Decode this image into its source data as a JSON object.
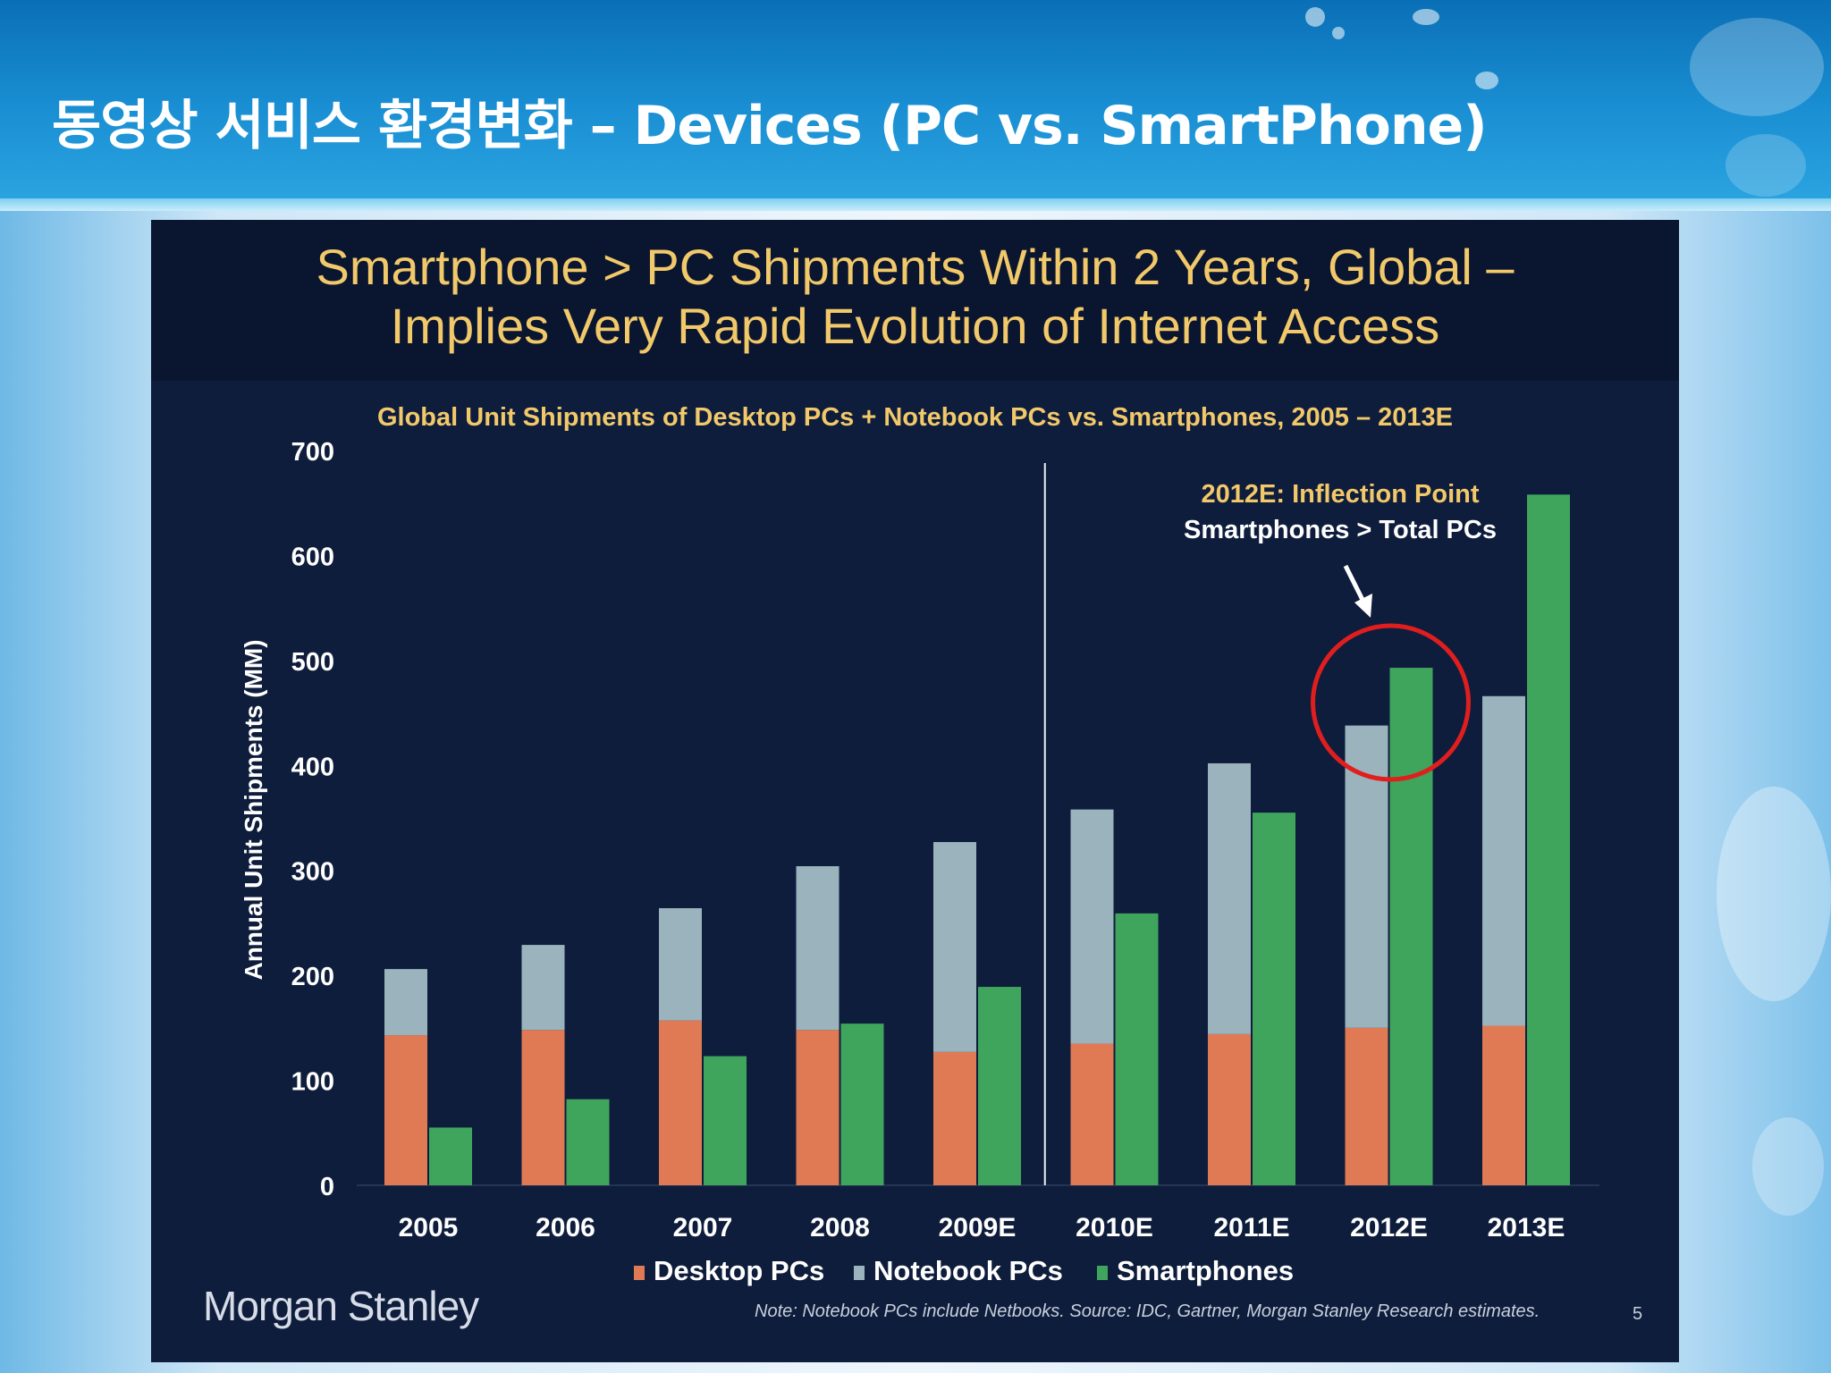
{
  "slide": {
    "title": "동영상 서비스 환경변화 – Devices (PC vs. SmartPhone)"
  },
  "chart_panel": {
    "headline_line1": "Smartphone > PC Shipments Within 2 Years, Global –",
    "headline_line2": "Implies Very Rapid Evolution of Internet Access",
    "annotation_line1": "2012E: Inflection Point",
    "annotation_line2": "Smartphones > Total PCs",
    "logo_text": "Morgan Stanley",
    "note": "Note: Notebook PCs include Netbooks. Source: IDC, Gartner, Morgan Stanley Research estimates.",
    "page_number": "5"
  },
  "colors": {
    "desktop": "#e07a55",
    "notebook": "#9ab3bd",
    "smartphone": "#3fa55c",
    "headline": "#f2c96a",
    "annotation_circle": "#e01e1e"
  },
  "chart_data": {
    "type": "bar",
    "title": "Global Unit Shipments of Desktop PCs + Notebook PCs vs. Smartphones, 2005 – 2013E",
    "ylabel": "Annual Unit Shipments (MM)",
    "xlabel": "",
    "ylim": [
      0,
      700
    ],
    "yticks": [
      0,
      100,
      200,
      300,
      400,
      500,
      600,
      700
    ],
    "categories": [
      "2005",
      "2006",
      "2007",
      "2008",
      "2009E",
      "2010E",
      "2011E",
      "2012E",
      "2013E"
    ],
    "series": [
      {
        "name": "Desktop PCs",
        "stack": "pc",
        "values": [
          143,
          148,
          157,
          148,
          127,
          135,
          144,
          150,
          152
        ]
      },
      {
        "name": "Notebook PCs",
        "stack": "pc",
        "values": [
          63,
          81,
          107,
          156,
          200,
          223,
          258,
          288,
          314
        ]
      },
      {
        "name": "Smartphones",
        "stack": "smartphone",
        "values": [
          55,
          82,
          123,
          154,
          189,
          259,
          355,
          493,
          658
        ]
      }
    ],
    "divider_after_category": "2009E",
    "highlight_category": "2012E",
    "grid": false,
    "legend_position": "bottom"
  }
}
